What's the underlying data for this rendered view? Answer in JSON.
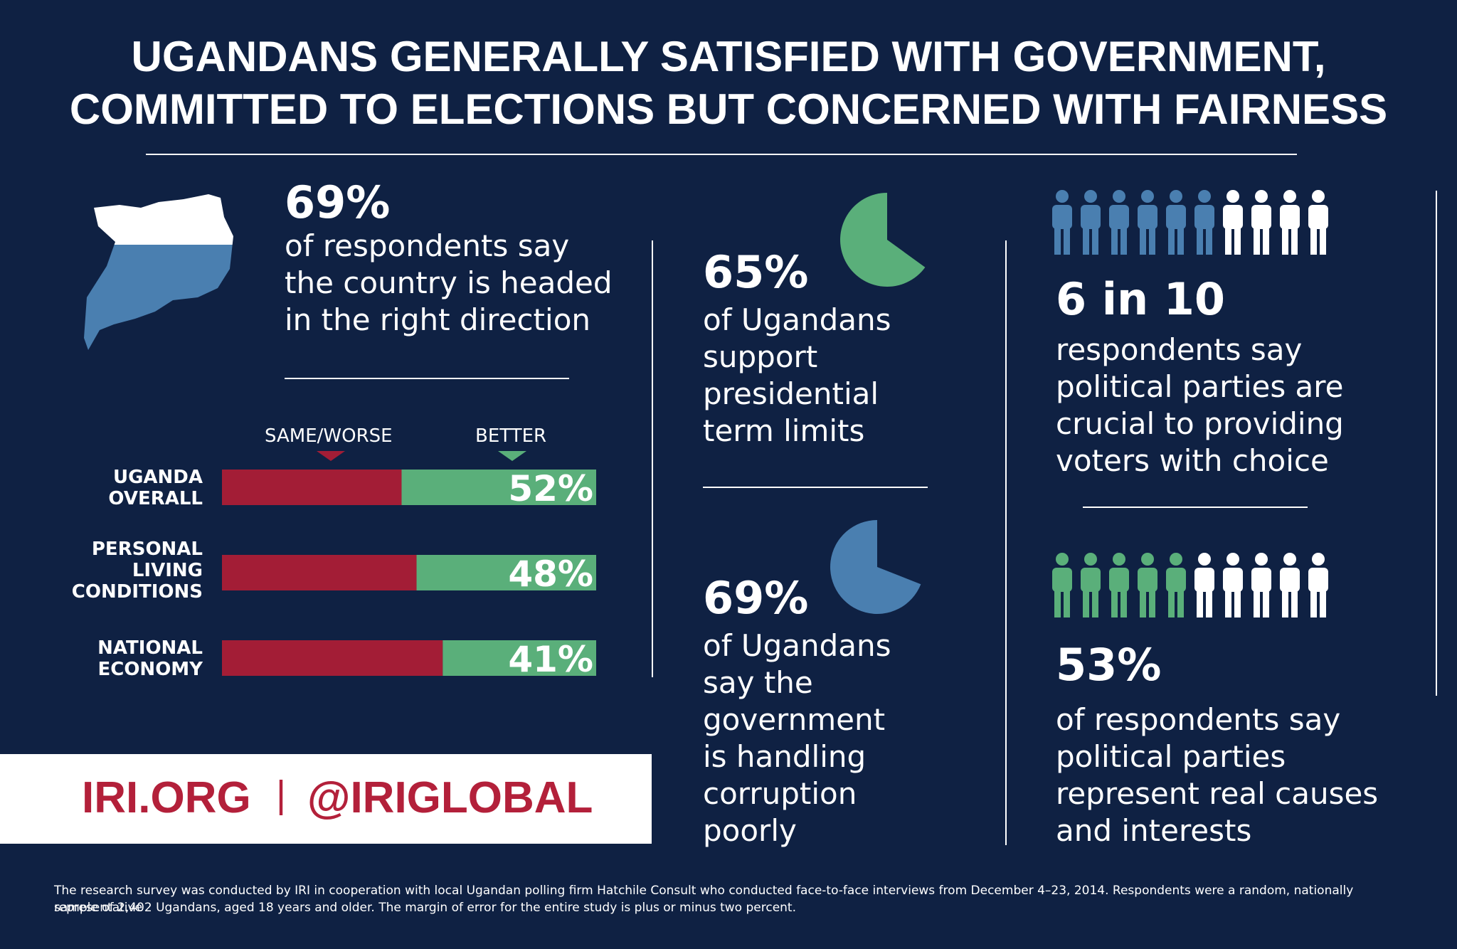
{
  "title": {
    "line1": "UGANDANS GENERALLY SATISFIED WITH GOVERNMENT,",
    "line2": "COMMITTED TO ELECTIONS BUT CONCERNED WITH FAIRNESS"
  },
  "colors": {
    "background": "#0f2143",
    "same_worse": "#a31d36",
    "better": "#5aaf7a",
    "blue": "#4a7fb0",
    "white": "#ffffff"
  },
  "stat_direction": {
    "value": "69%",
    "text": "of respondents say\nthe country is headed\nin the right direction",
    "icon": "uganda-map-icon",
    "fraction_filled": 0.69
  },
  "chart_data": {
    "type": "bar",
    "stacked": true,
    "orientation": "horizontal",
    "categories": [
      "UGANDA\nOVERALL",
      "PERSONAL\nLIVING\nCONDITIONS",
      "NATIONAL\nECONOMY"
    ],
    "series": [
      {
        "name": "SAME/WORSE",
        "values": [
          48,
          52,
          59
        ]
      },
      {
        "name": "BETTER",
        "values": [
          52,
          48,
          41
        ]
      }
    ],
    "data_labels": [
      "52%",
      "48%",
      "41%"
    ],
    "xlim": [
      0,
      100
    ],
    "legend": "top",
    "grid": false
  },
  "stat_term_limits": {
    "value": "65%",
    "text": "of Ugandans\nsupport\npresidential\nterm limits",
    "fraction": 0.65
  },
  "stat_corruption": {
    "value": "69%",
    "text": "of Ugandans\nsay the\ngovernment\nis handling\ncorruption\npoorly",
    "fraction": 0.69
  },
  "stat_parties_choice": {
    "value": "6 in 10",
    "text": "respondents say\npolitical parties are\ncrucial to providing\nvoters with choice",
    "highlighted": 6,
    "total": 10
  },
  "stat_parties_causes": {
    "value": "53%",
    "text": "of respondents say\npolitical parties\nrepresent real causes\nand interests",
    "highlighted": 5,
    "total": 10
  },
  "brand": {
    "site": "IRI.ORG",
    "separator": "|",
    "handle": "@IRIGLOBAL"
  },
  "footer": {
    "line1": "The research survey was conducted by IRI in cooperation with local Ugandan polling firm Hatchile Consult who conducted face-to-face interviews from December 4–23, 2014. Respondents were a random, nationally representative",
    "line2": "sample of 2,402 Ugandans, aged 18 years and older.  The margin of error for the entire study is plus or minus two percent."
  }
}
